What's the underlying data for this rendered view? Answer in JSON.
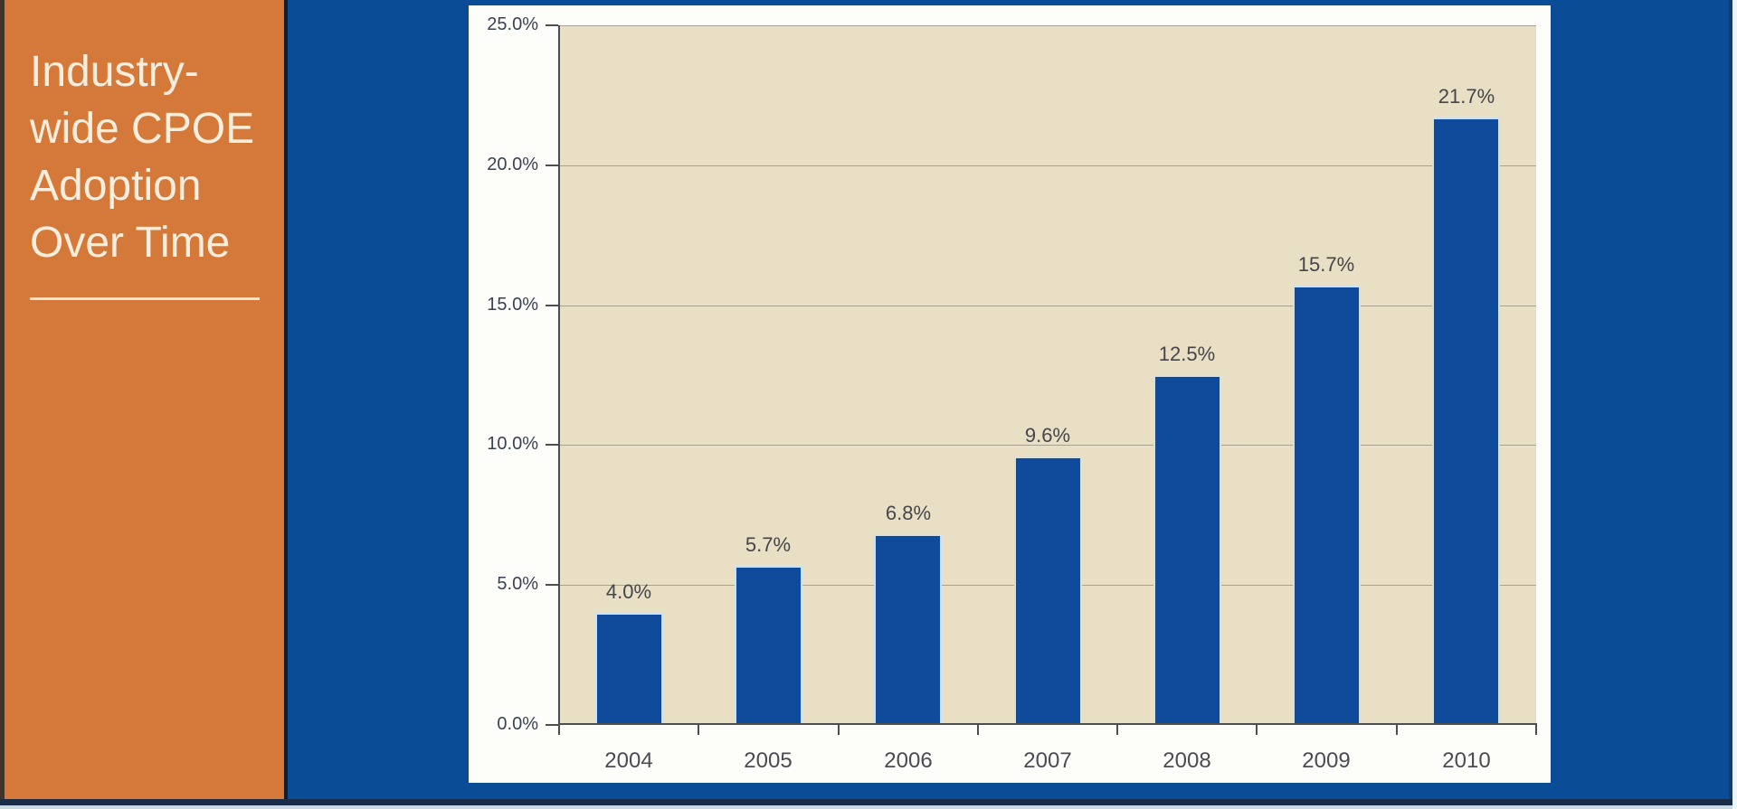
{
  "sidebar": {
    "title_lines": [
      "Industry-",
      "wide CPOE",
      "Adoption",
      "Over Time"
    ]
  },
  "chart_data": {
    "type": "bar",
    "title": "Industry-wide CPOE Adoption Over Time",
    "categories": [
      "2004",
      "2005",
      "2006",
      "2007",
      "2008",
      "2009",
      "2010"
    ],
    "values": [
      4.0,
      5.7,
      6.8,
      9.6,
      12.5,
      15.7,
      21.7
    ],
    "value_labels": [
      "4.0%",
      "5.7%",
      "6.8%",
      "9.6%",
      "12.5%",
      "15.7%",
      "21.7%"
    ],
    "xlabel": "",
    "ylabel": "",
    "ylim": [
      0,
      25
    ],
    "ytick_step": 5,
    "ytick_labels": [
      "0.0%",
      "5.0%",
      "10.0%",
      "15.0%",
      "20.0%",
      "25.0%"
    ],
    "grid": "horizontal",
    "legend": "none",
    "colors": {
      "bar": "#0f4a9b",
      "bar_outline": "#cfe2ec",
      "plot_background": "#e9dfc4",
      "panel_background": "#fdfdfa",
      "slide_background": "#0a4c96",
      "sidebar_background": "#d5793b",
      "sidebar_text": "#f7eedd",
      "gridline": "#a8a190",
      "axis": "#4e4e4e",
      "tick_text": "#3b4152",
      "value_text": "#45454c"
    }
  }
}
